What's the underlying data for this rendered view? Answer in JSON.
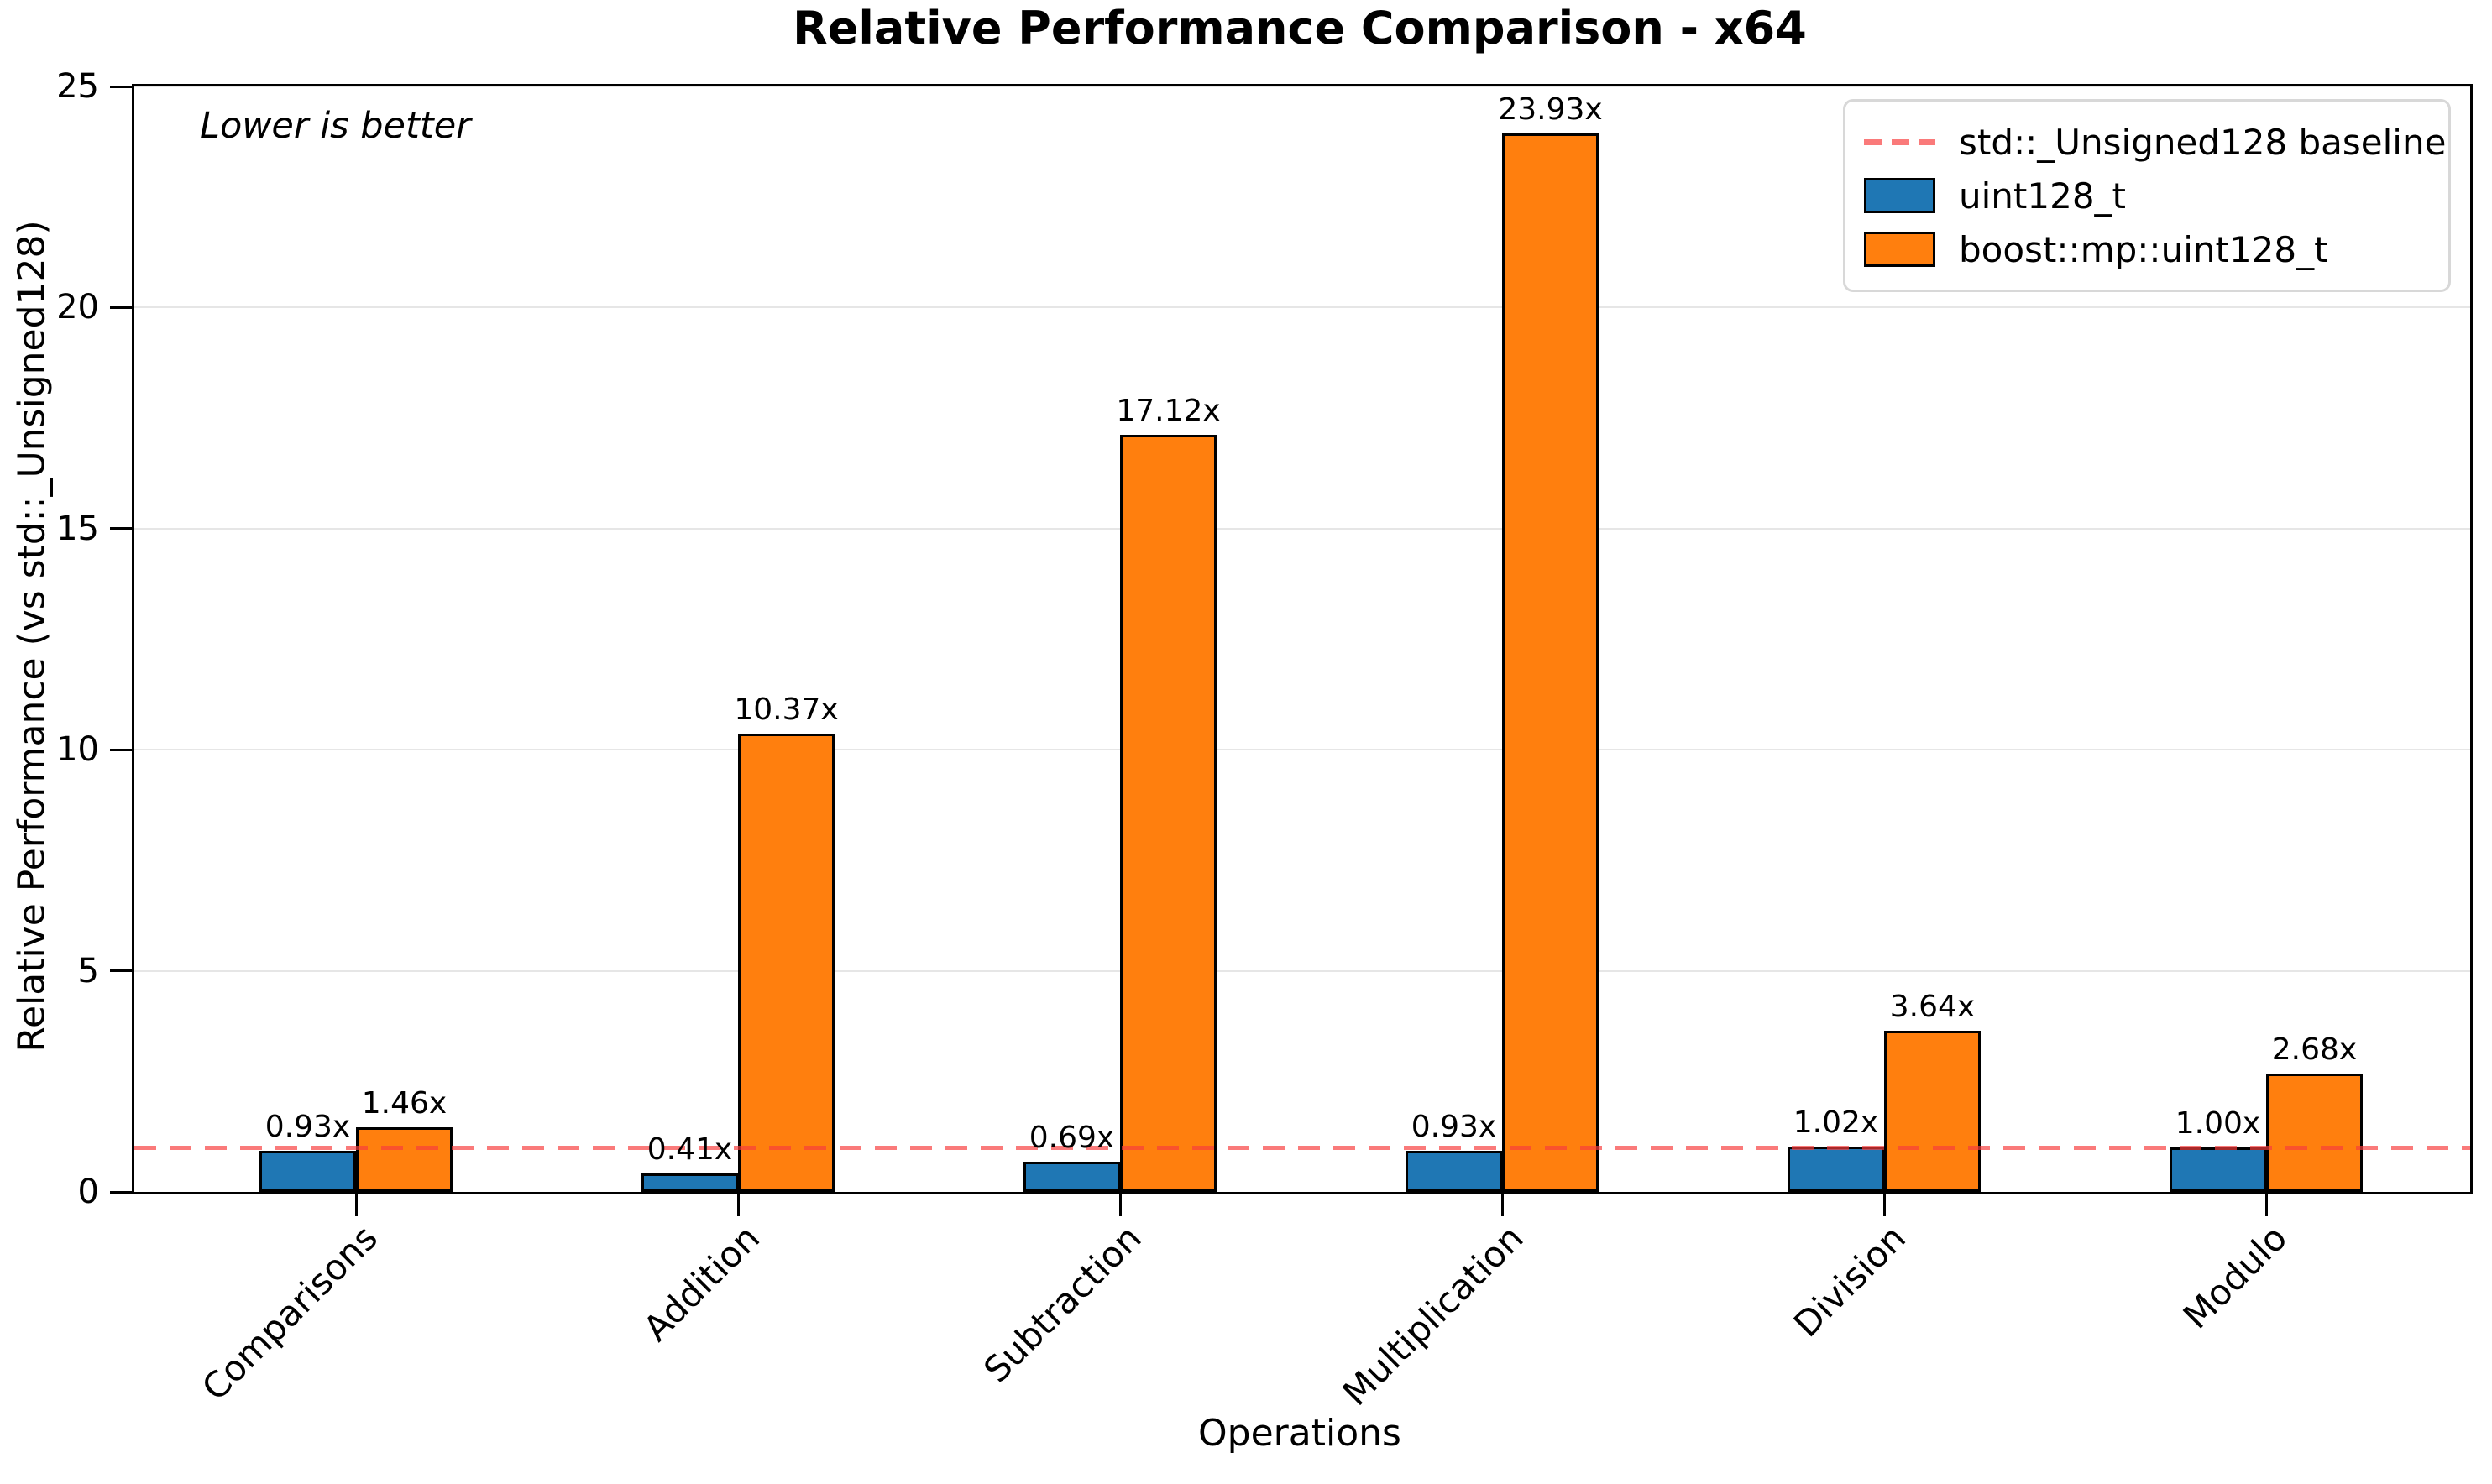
{
  "title": "Relative Performance Comparison - x64",
  "annotation": "Lower is better",
  "axes": {
    "xlabel": "Operations",
    "ylabel": "Relative Performance (vs std::_Unsigned128)"
  },
  "legend": {
    "entries": [
      {
        "label": "std::_Unsigned128 baseline",
        "type": "dashed-line",
        "color": "#f83c3c"
      },
      {
        "label": "uint128_t",
        "type": "box",
        "color": "#1f77b4"
      },
      {
        "label": "boost::mp::uint128_t",
        "type": "box",
        "color": "#ff7f0e"
      }
    ]
  },
  "chart_data": {
    "type": "bar",
    "title": "Relative Performance Comparison - x64",
    "xlabel": "Operations",
    "ylabel": "Relative Performance (vs std::_Unsigned128)",
    "annotation": "Lower is better",
    "categories": [
      "Comparisons",
      "Addition",
      "Subtraction",
      "Multiplication",
      "Division",
      "Modulo"
    ],
    "series": [
      {
        "name": "uint128_t",
        "color": "#1f77b4",
        "values": [
          0.93,
          0.41,
          0.69,
          0.93,
          1.02,
          1.0
        ],
        "labels": [
          "0.93x",
          "0.41x",
          "0.69x",
          "0.93x",
          "1.02x",
          "1.00x"
        ]
      },
      {
        "name": "boost::mp::uint128_t",
        "color": "#ff7f0e",
        "values": [
          1.46,
          10.37,
          17.12,
          23.93,
          3.64,
          2.68
        ],
        "labels": [
          "1.46x",
          "10.37x",
          "17.12x",
          "23.93x",
          "3.64x",
          "2.68x"
        ]
      }
    ],
    "baseline": {
      "value": 1.0,
      "label": "std::_Unsigned128 baseline",
      "color": "#f83c3c",
      "opacity": 0.68,
      "style": "dashed"
    },
    "ylim": [
      0,
      25
    ],
    "yticks": [
      0,
      5,
      10,
      15,
      20,
      25
    ],
    "grid": true,
    "legend_position": "upper-right",
    "bar_edge_color": "#000000",
    "lower_is_better": true
  }
}
